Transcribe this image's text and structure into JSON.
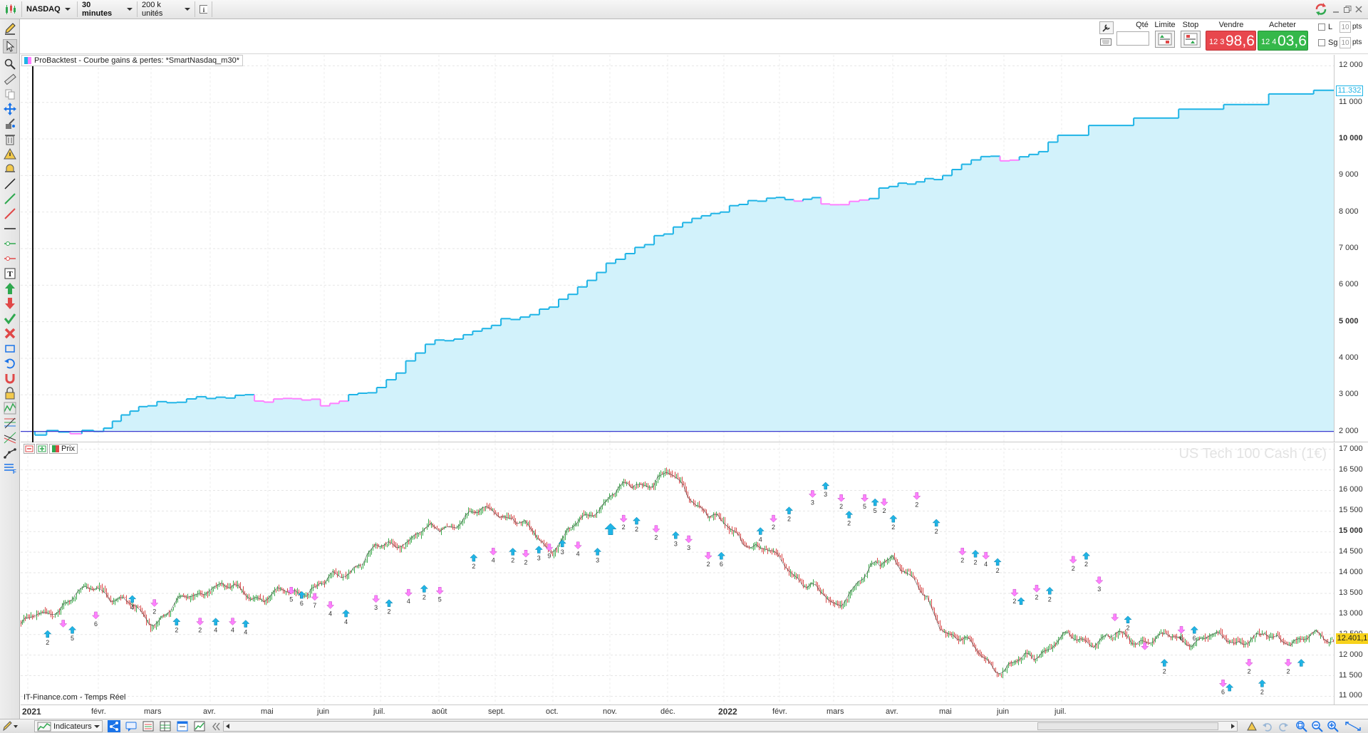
{
  "topbar": {
    "instrument": "NASDAQ",
    "timeframe": "30 minutes",
    "units": "200 k unités"
  },
  "order": {
    "qty_label": "Qté",
    "limit_label": "Limite",
    "stop_label": "Stop",
    "sell_label": "Vendre",
    "buy_label": "Acheter",
    "sell_small": "12 3",
    "sell_big": "98,6",
    "buy_small": "12 4",
    "buy_big": "03,6",
    "check_l": "L",
    "check_sg": "Sg",
    "pts_l_value": "10",
    "pts_sg_value": "10",
    "pts_label": "pts"
  },
  "equity_panel": {
    "title": "ProBacktest - Courbe gains & pertes: *SmartNasdaq_m30*",
    "current_value": "11.332",
    "y_ticks": [
      "12 000",
      "11 000",
      "10 000",
      "9 000",
      "8 000",
      "7 000",
      "6 000",
      "5 000",
      "4 000",
      "3 000",
      "2 000"
    ],
    "bold_ticks": [
      "10 000",
      "5 000"
    ],
    "colors": {
      "gain": "#1fb4e6",
      "loss": "#ff80ff",
      "fill": "#d2f2fb",
      "baseline": "#3b3bd0"
    }
  },
  "price_panel": {
    "label": "Prix",
    "watermark": "US Tech 100 Cash (1€)",
    "current_price": "12.401,1",
    "source": "IT-Finance.com - Temps Réel",
    "y_ticks": [
      "17 000",
      "16 500",
      "16 000",
      "15 500",
      "15 000",
      "14 500",
      "14 000",
      "13 500",
      "13 000",
      "12 500",
      "12 000",
      "11 500",
      "11 000"
    ],
    "bold_ticks": [
      "15 000"
    ],
    "signals": [
      {
        "d": 0.013,
        "p": 12600,
        "t": "buy",
        "n": "2"
      },
      {
        "d": 0.025,
        "p": 12850,
        "t": "sell",
        "n": ""
      },
      {
        "d": 0.032,
        "p": 12700,
        "t": "buy",
        "n": "5"
      },
      {
        "d": 0.05,
        "p": 13050,
        "t": "sell",
        "n": "6"
      },
      {
        "d": 0.078,
        "p": 13450,
        "t": "buy",
        "n": "4"
      },
      {
        "d": 0.095,
        "p": 13350,
        "t": "sell",
        "n": "2"
      },
      {
        "d": 0.112,
        "p": 12900,
        "t": "buy",
        "n": "2"
      },
      {
        "d": 0.13,
        "p": 12900,
        "t": "sell",
        "n": "2"
      },
      {
        "d": 0.142,
        "p": 12900,
        "t": "buy",
        "n": "4"
      },
      {
        "d": 0.155,
        "p": 12900,
        "t": "sell",
        "n": "4"
      },
      {
        "d": 0.165,
        "p": 12850,
        "t": "buy",
        "n": "4"
      },
      {
        "d": 0.2,
        "p": 13650,
        "t": "sell",
        "n": "5"
      },
      {
        "d": 0.208,
        "p": 13550,
        "t": "buy",
        "n": "6"
      },
      {
        "d": 0.218,
        "p": 13500,
        "t": "sell",
        "n": "7"
      },
      {
        "d": 0.23,
        "p": 13300,
        "t": "sell",
        "n": "4"
      },
      {
        "d": 0.242,
        "p": 13100,
        "t": "buy",
        "n": "4"
      },
      {
        "d": 0.265,
        "p": 13450,
        "t": "sell",
        "n": "3"
      },
      {
        "d": 0.275,
        "p": 13350,
        "t": "buy",
        "n": "2"
      },
      {
        "d": 0.29,
        "p": 13600,
        "t": "sell",
        "n": "4"
      },
      {
        "d": 0.302,
        "p": 13700,
        "t": "buy",
        "n": "2"
      },
      {
        "d": 0.314,
        "p": 13650,
        "t": "sell",
        "n": "5"
      },
      {
        "d": 0.34,
        "p": 14450,
        "t": "buy",
        "n": "2"
      },
      {
        "d": 0.355,
        "p": 14600,
        "t": "sell",
        "n": "4"
      },
      {
        "d": 0.37,
        "p": 14600,
        "t": "buy",
        "n": "2"
      },
      {
        "d": 0.38,
        "p": 14550,
        "t": "sell",
        "n": "2"
      },
      {
        "d": 0.39,
        "p": 14650,
        "t": "buy",
        "n": "3"
      },
      {
        "d": 0.398,
        "p": 14700,
        "t": "sell",
        "n": "9"
      },
      {
        "d": 0.408,
        "p": 14800,
        "t": "buy",
        "n": "3"
      },
      {
        "d": 0.42,
        "p": 14750,
        "t": "sell",
        "n": "4"
      },
      {
        "d": 0.435,
        "p": 14600,
        "t": "buy",
        "n": "3"
      },
      {
        "d": 0.445,
        "p": 15200,
        "t": "buy",
        "n": "",
        "big": true
      },
      {
        "d": 0.455,
        "p": 15400,
        "t": "sell",
        "n": "2"
      },
      {
        "d": 0.465,
        "p": 15350,
        "t": "buy",
        "n": "2"
      },
      {
        "d": 0.48,
        "p": 15150,
        "t": "sell",
        "n": "2"
      },
      {
        "d": 0.495,
        "p": 15000,
        "t": "buy",
        "n": "3"
      },
      {
        "d": 0.505,
        "p": 14900,
        "t": "sell",
        "n": "3"
      },
      {
        "d": 0.52,
        "p": 14500,
        "t": "sell",
        "n": "2"
      },
      {
        "d": 0.53,
        "p": 14500,
        "t": "buy",
        "n": "6"
      },
      {
        "d": 0.56,
        "p": 15100,
        "t": "buy",
        "n": "4"
      },
      {
        "d": 0.57,
        "p": 15400,
        "t": "sell",
        "n": "2"
      },
      {
        "d": 0.582,
        "p": 15600,
        "t": "buy",
        "n": "2"
      },
      {
        "d": 0.6,
        "p": 16000,
        "t": "sell",
        "n": "3"
      },
      {
        "d": 0.61,
        "p": 16200,
        "t": "buy",
        "n": "3"
      },
      {
        "d": 0.622,
        "p": 15900,
        "t": "sell",
        "n": "2"
      },
      {
        "d": 0.628,
        "p": 15500,
        "t": "buy",
        "n": "2"
      },
      {
        "d": 0.64,
        "p": 15900,
        "t": "sell",
        "n": "5"
      },
      {
        "d": 0.648,
        "p": 15800,
        "t": "buy",
        "n": "5"
      },
      {
        "d": 0.655,
        "p": 15800,
        "t": "sell",
        "n": "2"
      },
      {
        "d": 0.662,
        "p": 15400,
        "t": "buy",
        "n": "2"
      },
      {
        "d": 0.68,
        "p": 15950,
        "t": "sell",
        "n": "2"
      },
      {
        "d": 0.695,
        "p": 15300,
        "t": "buy",
        "n": "2"
      },
      {
        "d": 0.715,
        "p": 14600,
        "t": "sell",
        "n": "2"
      },
      {
        "d": 0.725,
        "p": 14550,
        "t": "buy",
        "n": "2"
      },
      {
        "d": 0.733,
        "p": 14500,
        "t": "sell",
        "n": "4"
      },
      {
        "d": 0.742,
        "p": 14350,
        "t": "buy",
        "n": "2"
      },
      {
        "d": 0.755,
        "p": 13600,
        "t": "sell",
        "n": "2"
      },
      {
        "d": 0.76,
        "p": 13400,
        "t": "buy",
        "n": ""
      },
      {
        "d": 0.772,
        "p": 13700,
        "t": "sell",
        "n": "2"
      },
      {
        "d": 0.782,
        "p": 13650,
        "t": "buy",
        "n": "2"
      },
      {
        "d": 0.8,
        "p": 14400,
        "t": "sell",
        "n": "2"
      },
      {
        "d": 0.81,
        "p": 14500,
        "t": "buy",
        "n": "2"
      },
      {
        "d": 0.82,
        "p": 13900,
        "t": "sell",
        "n": "3"
      },
      {
        "d": 0.832,
        "p": 13000,
        "t": "sell",
        "n": ""
      },
      {
        "d": 0.842,
        "p": 12950,
        "t": "buy",
        "n": "2"
      },
      {
        "d": 0.855,
        "p": 12300,
        "t": "sell",
        "n": ""
      },
      {
        "d": 0.87,
        "p": 11900,
        "t": "buy",
        "n": "2"
      },
      {
        "d": 0.883,
        "p": 12700,
        "t": "sell",
        "n": "6"
      },
      {
        "d": 0.893,
        "p": 12700,
        "t": "buy",
        "n": "6"
      },
      {
        "d": 0.915,
        "p": 11400,
        "t": "sell",
        "n": "6"
      },
      {
        "d": 0.92,
        "p": 11300,
        "t": "buy",
        "n": ""
      },
      {
        "d": 0.935,
        "p": 11900,
        "t": "sell",
        "n": "2"
      },
      {
        "d": 0.945,
        "p": 11400,
        "t": "buy",
        "n": "2"
      },
      {
        "d": 0.965,
        "p": 11900,
        "t": "sell",
        "n": "2"
      },
      {
        "d": 0.975,
        "p": 11900,
        "t": "buy",
        "n": ""
      }
    ]
  },
  "date_axis": [
    {
      "label": "2021",
      "bold": true
    },
    {
      "label": "févr.",
      "bold": false
    },
    {
      "label": "mars",
      "bold": false
    },
    {
      "label": "avr.",
      "bold": false
    },
    {
      "label": "mai",
      "bold": false
    },
    {
      "label": "juin",
      "bold": false
    },
    {
      "label": "juil.",
      "bold": false
    },
    {
      "label": "août",
      "bold": false
    },
    {
      "label": "sept.",
      "bold": false
    },
    {
      "label": "oct.",
      "bold": false
    },
    {
      "label": "nov.",
      "bold": false
    },
    {
      "label": "déc.",
      "bold": false
    },
    {
      "label": "2022",
      "bold": true
    },
    {
      "label": "févr.",
      "bold": false
    },
    {
      "label": "mars",
      "bold": false
    },
    {
      "label": "avr.",
      "bold": false
    },
    {
      "label": "mai",
      "bold": false
    },
    {
      "label": "juin",
      "bold": false
    },
    {
      "label": "juil.",
      "bold": false
    }
  ],
  "bottombar": {
    "indicators_label": "Indicateurs"
  },
  "chart_data": [
    {
      "type": "line",
      "title": "ProBacktest - Courbe gains & pertes: *SmartNasdaq_m30*",
      "xlabel": "",
      "ylabel": "",
      "ylim": [
        1700,
        12300
      ],
      "x": [
        "2021-01",
        "2021-02",
        "2021-03",
        "2021-04",
        "2021-05",
        "2021-06",
        "2021-07",
        "2021-08",
        "2021-09",
        "2021-10",
        "2021-11",
        "2021-12",
        "2022-01",
        "2022-02",
        "2022-03",
        "2022-04",
        "2022-05",
        "2022-06",
        "2022-07"
      ],
      "series": [
        {
          "values": [
            2000,
            2700,
            2900,
            2800,
            2700,
            3200,
            4500,
            4900,
            5400,
            6600,
            7400,
            8000,
            8400,
            8200,
            8700,
            9000,
            9400,
            10100,
            11332
          ]
        }
      ],
      "baseline": 2000,
      "grid": true
    },
    {
      "type": "line",
      "title": "US Tech 100 Cash (1€)",
      "xlabel": "",
      "ylabel": "",
      "ylim": [
        10800,
        17150
      ],
      "x": [
        "2021-01",
        "2021-02",
        "2021-03",
        "2021-04",
        "2021-05",
        "2021-06",
        "2021-07",
        "2021-08",
        "2021-09",
        "2021-10",
        "2021-11",
        "2021-12",
        "2022-01",
        "2022-02",
        "2022-03",
        "2022-04",
        "2022-05",
        "2022-06",
        "2022-07"
      ],
      "series": [
        {
          "values": [
            12800,
            13700,
            12800,
            13700,
            13400,
            13700,
            14600,
            15100,
            15600,
            14600,
            15900,
            16400,
            15100,
            14300,
            13200,
            14500,
            12600,
            11600,
            12401.1
          ]
        }
      ],
      "grid": true
    }
  ]
}
